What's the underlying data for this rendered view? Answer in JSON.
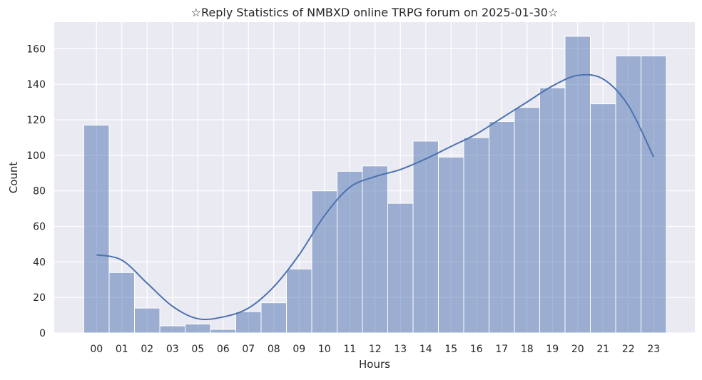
{
  "chart_data": {
    "type": "bar",
    "title": "☆Reply Statistics of NMBXD online TRPG forum on 2025-01-30☆",
    "xlabel": "Hours",
    "ylabel": "Count",
    "categories": [
      "00",
      "01",
      "02",
      "03",
      "05",
      "06",
      "07",
      "08",
      "09",
      "10",
      "11",
      "12",
      "13",
      "14",
      "15",
      "16",
      "17",
      "18",
      "19",
      "20",
      "21",
      "22",
      "23"
    ],
    "values": [
      117,
      34,
      14,
      4,
      5,
      2,
      12,
      17,
      36,
      80,
      91,
      94,
      73,
      108,
      99,
      110,
      119,
      127,
      138,
      167,
      129,
      156,
      156
    ],
    "kde": {
      "x": [
        "00",
        "01",
        "02",
        "03",
        "05",
        "06",
        "07",
        "08",
        "09",
        "10",
        "11",
        "12",
        "13",
        "14",
        "15",
        "16",
        "17",
        "18",
        "19",
        "20",
        "21",
        "22",
        "23"
      ],
      "y": [
        44,
        41,
        28,
        15,
        8,
        9,
        14,
        26,
        44,
        66,
        82,
        88,
        92,
        98,
        105,
        112,
        121,
        130,
        139,
        145,
        143,
        128,
        99
      ]
    },
    "yticks": [
      0,
      20,
      40,
      60,
      80,
      100,
      120,
      140,
      160
    ],
    "ylim": [
      0,
      175
    ],
    "grid": true,
    "colors": {
      "bar_fill": "#4c72b0",
      "bar_opacity": "0.5",
      "kde_line": "#4c72b0",
      "plot_bg": "#eaeaf2",
      "grid": "#ffffff"
    }
  }
}
